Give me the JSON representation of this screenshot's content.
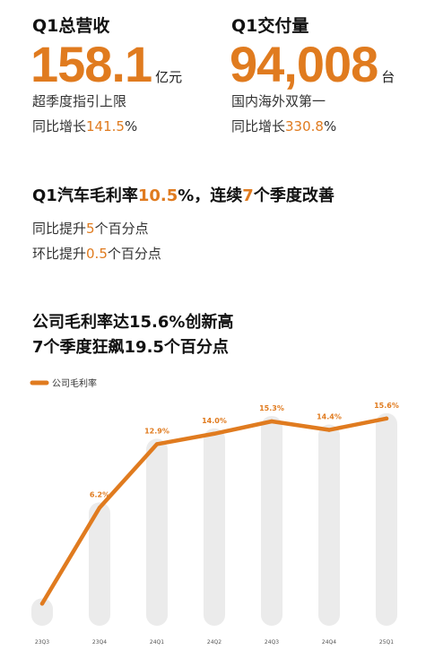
{
  "revenue": {
    "label": "Q1总营收",
    "value": "158.1",
    "unit": "亿元",
    "line1": "超季度指引上限",
    "line2_prefix": "同比增长",
    "line2_value": "141.5",
    "line2_suffix": "%"
  },
  "deliveries": {
    "label": "Q1交付量",
    "value": "94,008",
    "unit": "台",
    "line1": "国内海外双第一",
    "line2_prefix": "同比增长",
    "line2_value": "330.8",
    "line2_suffix": "%"
  },
  "margin_section": {
    "title_prefix": "Q1汽车毛利率",
    "title_value": "10.5",
    "title_mid": "%，连续",
    "title_count": "7",
    "title_suffix": "个季度改善",
    "line1_prefix": "同比提升",
    "line1_value": "5",
    "line1_suffix": "个百分点",
    "line2_prefix": "环比提升",
    "line2_value": "0.5",
    "line2_suffix": "个百分点"
  },
  "chart_heading": {
    "line1": "公司毛利率达15.6%创新高",
    "line2": "7个季度狂飙19.5个百分点"
  },
  "colors": {
    "accent": "#e07b1f",
    "bar": "#ebebeb",
    "text": "#111111"
  },
  "chart_data": {
    "type": "line",
    "title": "",
    "xlabel": "",
    "ylabel": "",
    "legend": {
      "position": "top-left",
      "entries": [
        "公司毛利率"
      ]
    },
    "categories": [
      "23Q3",
      "23Q4",
      "24Q1",
      "24Q2",
      "24Q3",
      "24Q4",
      "25Q1"
    ],
    "series": [
      {
        "name": "公司毛利率",
        "values": [
          -3.9,
          6.2,
          12.9,
          14.0,
          15.3,
          14.4,
          15.6
        ],
        "data_labels": [
          "",
          "6.2%",
          "12.9%",
          "14.0%",
          "15.3%",
          "14.4%",
          "15.6%"
        ]
      }
    ],
    "ylim": [
      -5,
      17
    ],
    "grid": false,
    "background_bars": true
  }
}
